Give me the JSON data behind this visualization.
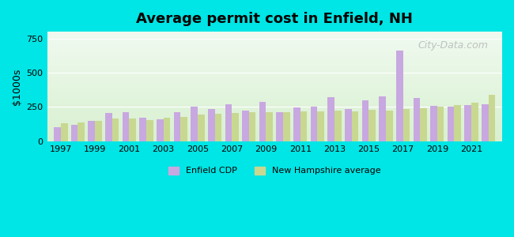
{
  "title": "Average permit cost in Enfield, NH",
  "ylabel": "$1000s",
  "background_outer": "#00e5e5",
  "ylim": [
    0,
    800
  ],
  "yticks": [
    0,
    250,
    500,
    750
  ],
  "years": [
    1997,
    1998,
    1999,
    2000,
    2001,
    2002,
    2003,
    2004,
    2005,
    2006,
    2007,
    2008,
    2009,
    2010,
    2011,
    2012,
    2013,
    2014,
    2015,
    2016,
    2017,
    2018,
    2019,
    2020,
    2021,
    2022
  ],
  "enfield_cdp": [
    100,
    120,
    150,
    205,
    215,
    170,
    160,
    215,
    250,
    235,
    270,
    225,
    285,
    215,
    245,
    255,
    320,
    235,
    300,
    330,
    660,
    315,
    260,
    250,
    262,
    270
  ],
  "nh_average": [
    130,
    140,
    150,
    165,
    165,
    155,
    170,
    175,
    195,
    200,
    205,
    210,
    215,
    215,
    220,
    220,
    225,
    220,
    230,
    225,
    235,
    240,
    255,
    265,
    280,
    340
  ],
  "color_enfield": "#c8a8e0",
  "color_nh": "#c8d890",
  "bar_width": 0.4,
  "legend_enfield": "Enfield CDP",
  "legend_nh": "New Hampshire average",
  "watermark": "City-Data.com"
}
